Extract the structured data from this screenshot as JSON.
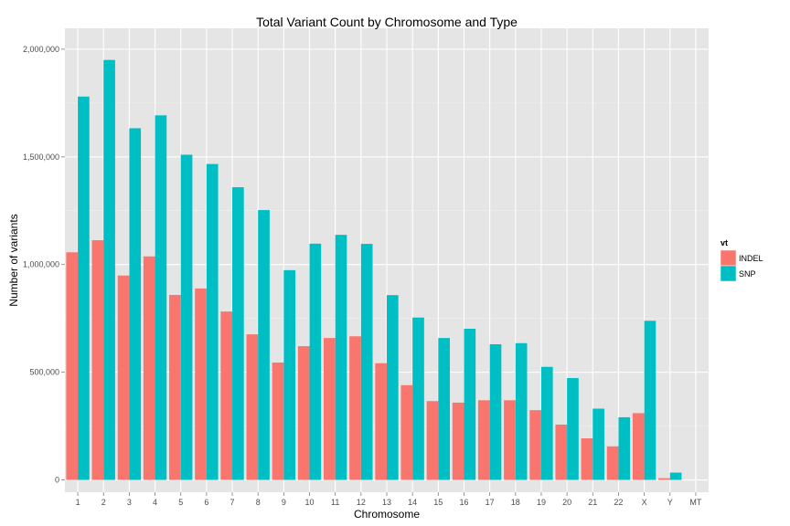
{
  "chart_data": {
    "type": "bar",
    "title": "Total Variant Count by Chromosome and Type",
    "xlabel": "Chromosome",
    "ylabel": "Number of variants",
    "categories": [
      "1",
      "2",
      "3",
      "4",
      "5",
      "6",
      "7",
      "8",
      "9",
      "10",
      "11",
      "12",
      "13",
      "14",
      "15",
      "16",
      "17",
      "18",
      "19",
      "20",
      "21",
      "22",
      "X",
      "Y",
      "MT"
    ],
    "series": [
      {
        "name": "INDEL",
        "color": "#F8766D",
        "values": [
          1057000,
          1113000,
          949000,
          1038000,
          859000,
          889000,
          782000,
          676000,
          545000,
          621000,
          659000,
          667000,
          542000,
          440000,
          366000,
          359000,
          370000,
          370000,
          324000,
          257000,
          193000,
          156000,
          310000,
          8000,
          0
        ]
      },
      {
        "name": "SNP",
        "color": "#00BFC4",
        "values": [
          1780000,
          1950000,
          1633000,
          1693000,
          1510000,
          1467000,
          1359000,
          1253000,
          974000,
          1097000,
          1138000,
          1096000,
          858000,
          754000,
          659000,
          702000,
          630000,
          635000,
          525000,
          473000,
          331000,
          291000,
          739000,
          34000,
          0
        ]
      }
    ],
    "ylim": [
      -57000,
      2097000
    ],
    "yticks": [
      0,
      500000,
      1000000,
      1500000,
      2000000
    ],
    "ytick_labels": [
      "0",
      "500,000",
      "1,000,000",
      "1,500,000",
      "2,000,000"
    ],
    "grid": true,
    "legend": {
      "title": "vt",
      "position": "right"
    }
  },
  "colors": {
    "panel_background": "#e5e5e5",
    "grid_major": "#ffffff",
    "grid_minor": "#f2f2f2"
  }
}
